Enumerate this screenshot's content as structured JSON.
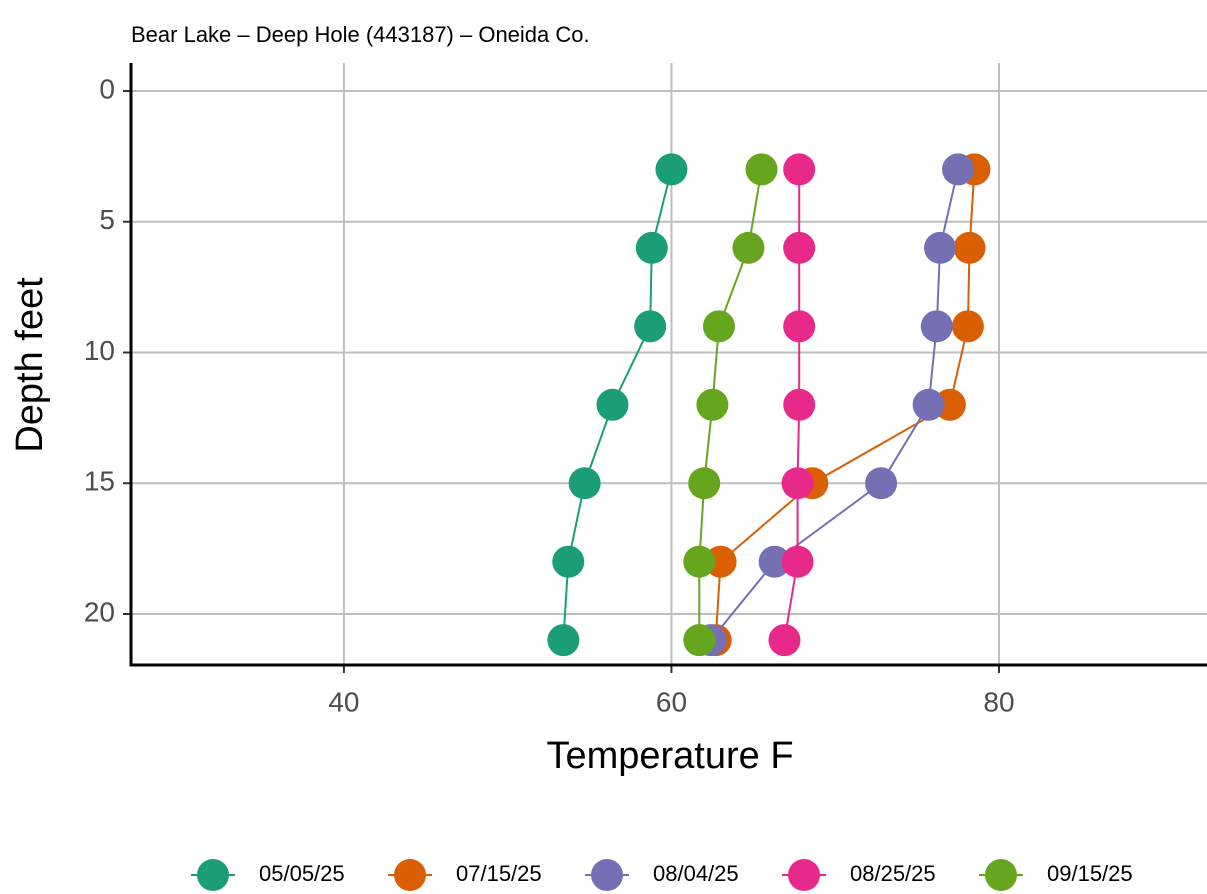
{
  "chart_data": {
    "type": "line",
    "title": "Bear Lake – Deep Hole (443187) – Oneida Co.",
    "x_label": "Temperature F",
    "y_label": "Depth feet",
    "y": [
      3,
      6,
      9,
      12,
      15,
      18,
      21
    ],
    "xlim": [
      27,
      92.7
    ],
    "xticks": [
      40,
      60,
      80
    ],
    "ylim": [
      -1.07,
      21.95
    ],
    "yticks": [
      0,
      5,
      10,
      15,
      20
    ],
    "y_reversed": true,
    "grid": true,
    "legend": "bottom",
    "series": [
      {
        "name": "05/05/25",
        "color": "#1b9e77",
        "values": [
          60.0,
          58.8,
          58.7,
          56.4,
          54.7,
          53.7,
          53.4
        ]
      },
      {
        "name": "07/15/25",
        "color": "#d95f02",
        "values": [
          78.5,
          78.2,
          78.1,
          77.0,
          68.6,
          63.0,
          62.7
        ]
      },
      {
        "name": "08/04/25",
        "color": "#7570b3",
        "values": [
          77.5,
          76.4,
          76.2,
          75.7,
          72.8,
          66.3,
          62.4
        ]
      },
      {
        "name": "08/25/25",
        "color": "#e7298a",
        "values": [
          67.8,
          67.8,
          67.8,
          67.8,
          67.7,
          67.7,
          66.9
        ]
      },
      {
        "name": "09/15/25",
        "color": "#66a61e",
        "values": [
          65.5,
          64.7,
          62.9,
          62.5,
          62.0,
          61.7,
          61.7
        ]
      }
    ]
  }
}
